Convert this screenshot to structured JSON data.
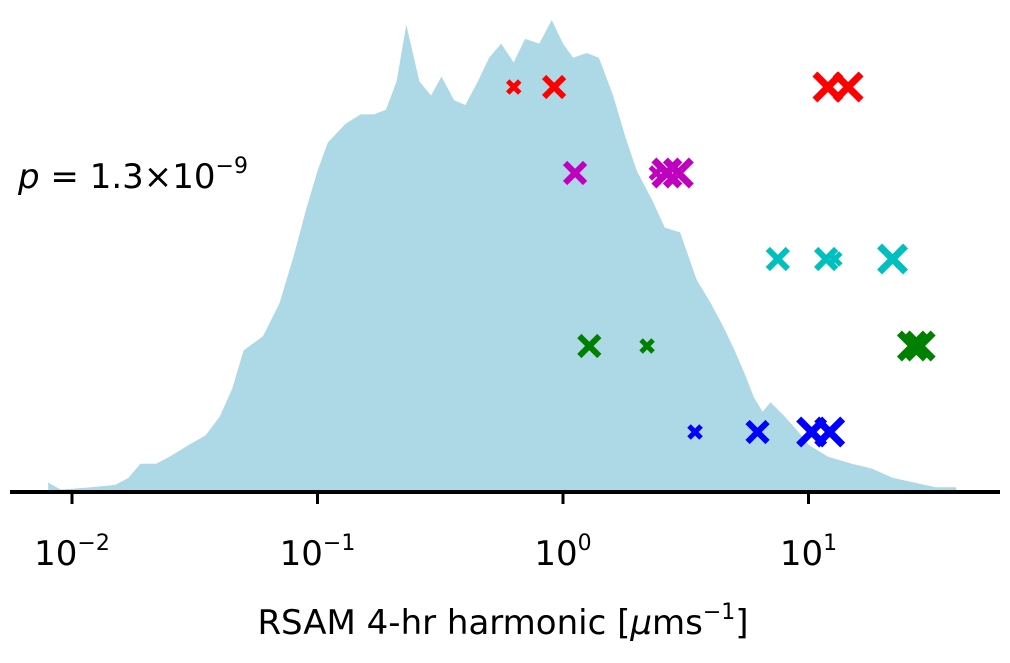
{
  "chart_data": {
    "type": "area",
    "xscale": "log",
    "xlim": [
      0.008,
      60
    ],
    "xticks": [
      {
        "value": 0.01,
        "base": "10",
        "exp": "−2"
      },
      {
        "value": 0.1,
        "base": "10",
        "exp": "−1"
      },
      {
        "value": 1,
        "base": "10",
        "exp": "0"
      },
      {
        "value": 10,
        "base": "10",
        "exp": "1"
      }
    ],
    "xlabel": {
      "main": "RSAM 4-hr harmonic [",
      "mu": "μ",
      "unit": "ms",
      "exp": "−1",
      "close": "]"
    },
    "yaxis_visible": false,
    "annotation": {
      "var": "p",
      "eq": " = 1.3×10",
      "exp": "−9"
    },
    "fill_color": "#add8e6",
    "density": [
      [
        0.008,
        0.02
      ],
      [
        0.009,
        0.005
      ],
      [
        0.012,
        0.01
      ],
      [
        0.015,
        0.015
      ],
      [
        0.017,
        0.03
      ],
      [
        0.019,
        0.06
      ],
      [
        0.022,
        0.06
      ],
      [
        0.025,
        0.075
      ],
      [
        0.03,
        0.1
      ],
      [
        0.035,
        0.12
      ],
      [
        0.04,
        0.16
      ],
      [
        0.045,
        0.22
      ],
      [
        0.05,
        0.3
      ],
      [
        0.06,
        0.33
      ],
      [
        0.07,
        0.4
      ],
      [
        0.08,
        0.5
      ],
      [
        0.09,
        0.6
      ],
      [
        0.1,
        0.68
      ],
      [
        0.11,
        0.74
      ],
      [
        0.13,
        0.78
      ],
      [
        0.15,
        0.8
      ],
      [
        0.17,
        0.8
      ],
      [
        0.19,
        0.81
      ],
      [
        0.21,
        0.87
      ],
      [
        0.23,
        0.99
      ],
      [
        0.26,
        0.87
      ],
      [
        0.29,
        0.84
      ],
      [
        0.32,
        0.88
      ],
      [
        0.36,
        0.83
      ],
      [
        0.4,
        0.82
      ],
      [
        0.45,
        0.87
      ],
      [
        0.5,
        0.92
      ],
      [
        0.56,
        0.95
      ],
      [
        0.63,
        0.91
      ],
      [
        0.7,
        0.96
      ],
      [
        0.8,
        0.95
      ],
      [
        0.9,
        1.0
      ],
      [
        1.0,
        0.95
      ],
      [
        1.1,
        0.92
      ],
      [
        1.25,
        0.93
      ],
      [
        1.4,
        0.92
      ],
      [
        1.6,
        0.84
      ],
      [
        1.8,
        0.75
      ],
      [
        2.0,
        0.68
      ],
      [
        2.3,
        0.62
      ],
      [
        2.6,
        0.56
      ],
      [
        3.0,
        0.55
      ],
      [
        3.5,
        0.45
      ],
      [
        4.0,
        0.4
      ],
      [
        4.5,
        0.35
      ],
      [
        5.0,
        0.3
      ],
      [
        5.5,
        0.25
      ],
      [
        6.0,
        0.2
      ],
      [
        6.5,
        0.17
      ],
      [
        7.0,
        0.19
      ],
      [
        8.0,
        0.16
      ],
      [
        9.0,
        0.13
      ],
      [
        10.0,
        0.1
      ],
      [
        12.0,
        0.075
      ],
      [
        15.0,
        0.06
      ],
      [
        18.0,
        0.05
      ],
      [
        22.0,
        0.03
      ],
      [
        27.0,
        0.02
      ],
      [
        33.0,
        0.01
      ],
      [
        40.0,
        0.01
      ]
    ],
    "series": [
      {
        "color": "#ff0000",
        "points": [
          [
            0.63,
            "small"
          ],
          [
            0.92,
            "medium"
          ],
          [
            12.0,
            "large"
          ],
          [
            14.5,
            "large"
          ]
        ]
      },
      {
        "color": "#bf00bf",
        "points": [
          [
            1.12,
            "medium"
          ],
          [
            2.4,
            "small"
          ],
          [
            2.65,
            "large"
          ],
          [
            2.95,
            "large"
          ]
        ]
      },
      {
        "color": "#00bfbf",
        "points": [
          [
            7.5,
            "medium"
          ],
          [
            11.8,
            "medium"
          ],
          [
            12.8,
            "small"
          ],
          [
            22.0,
            "large"
          ]
        ]
      },
      {
        "color": "#008000",
        "points": [
          [
            1.28,
            "medium"
          ],
          [
            2.2,
            "small"
          ],
          [
            26.5,
            "large"
          ],
          [
            28.5,
            "large"
          ]
        ]
      },
      {
        "color": "#0000ff",
        "points": [
          [
            3.45,
            "small"
          ],
          [
            6.2,
            "medium"
          ],
          [
            10.3,
            "large"
          ],
          [
            12.2,
            "large"
          ]
        ]
      }
    ]
  }
}
